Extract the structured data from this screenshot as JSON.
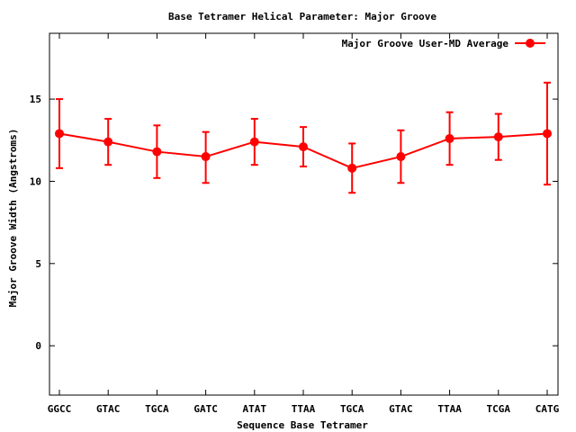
{
  "chart_data": {
    "type": "line",
    "title": "Base Tetramer Helical Parameter: Major Groove",
    "xlabel": "Sequence Base Tetramer",
    "ylabel": "Major Groove Width (Angstroms)",
    "categories": [
      "GGCC",
      "GTAC",
      "TGCA",
      "GATC",
      "ATAT",
      "TTAA",
      "TGCA",
      "GTAC",
      "TTAA",
      "TCGA",
      "CATG"
    ],
    "ylim": [
      -3,
      19
    ],
    "yticks": [
      0,
      5,
      10,
      15
    ],
    "grid": false,
    "legend_position": "top-right",
    "series": [
      {
        "name": "Major Groove User-MD Average",
        "color": "#ff0000",
        "values": [
          12.9,
          12.4,
          11.8,
          11.5,
          12.4,
          12.1,
          10.8,
          11.5,
          12.6,
          12.7,
          12.9
        ],
        "err_low": [
          10.8,
          11.0,
          10.2,
          9.9,
          11.0,
          10.9,
          9.3,
          9.9,
          11.0,
          11.3,
          9.8
        ],
        "err_high": [
          15.0,
          13.8,
          13.4,
          13.0,
          13.8,
          13.3,
          12.3,
          13.1,
          14.2,
          14.1,
          16.0
        ]
      }
    ]
  }
}
